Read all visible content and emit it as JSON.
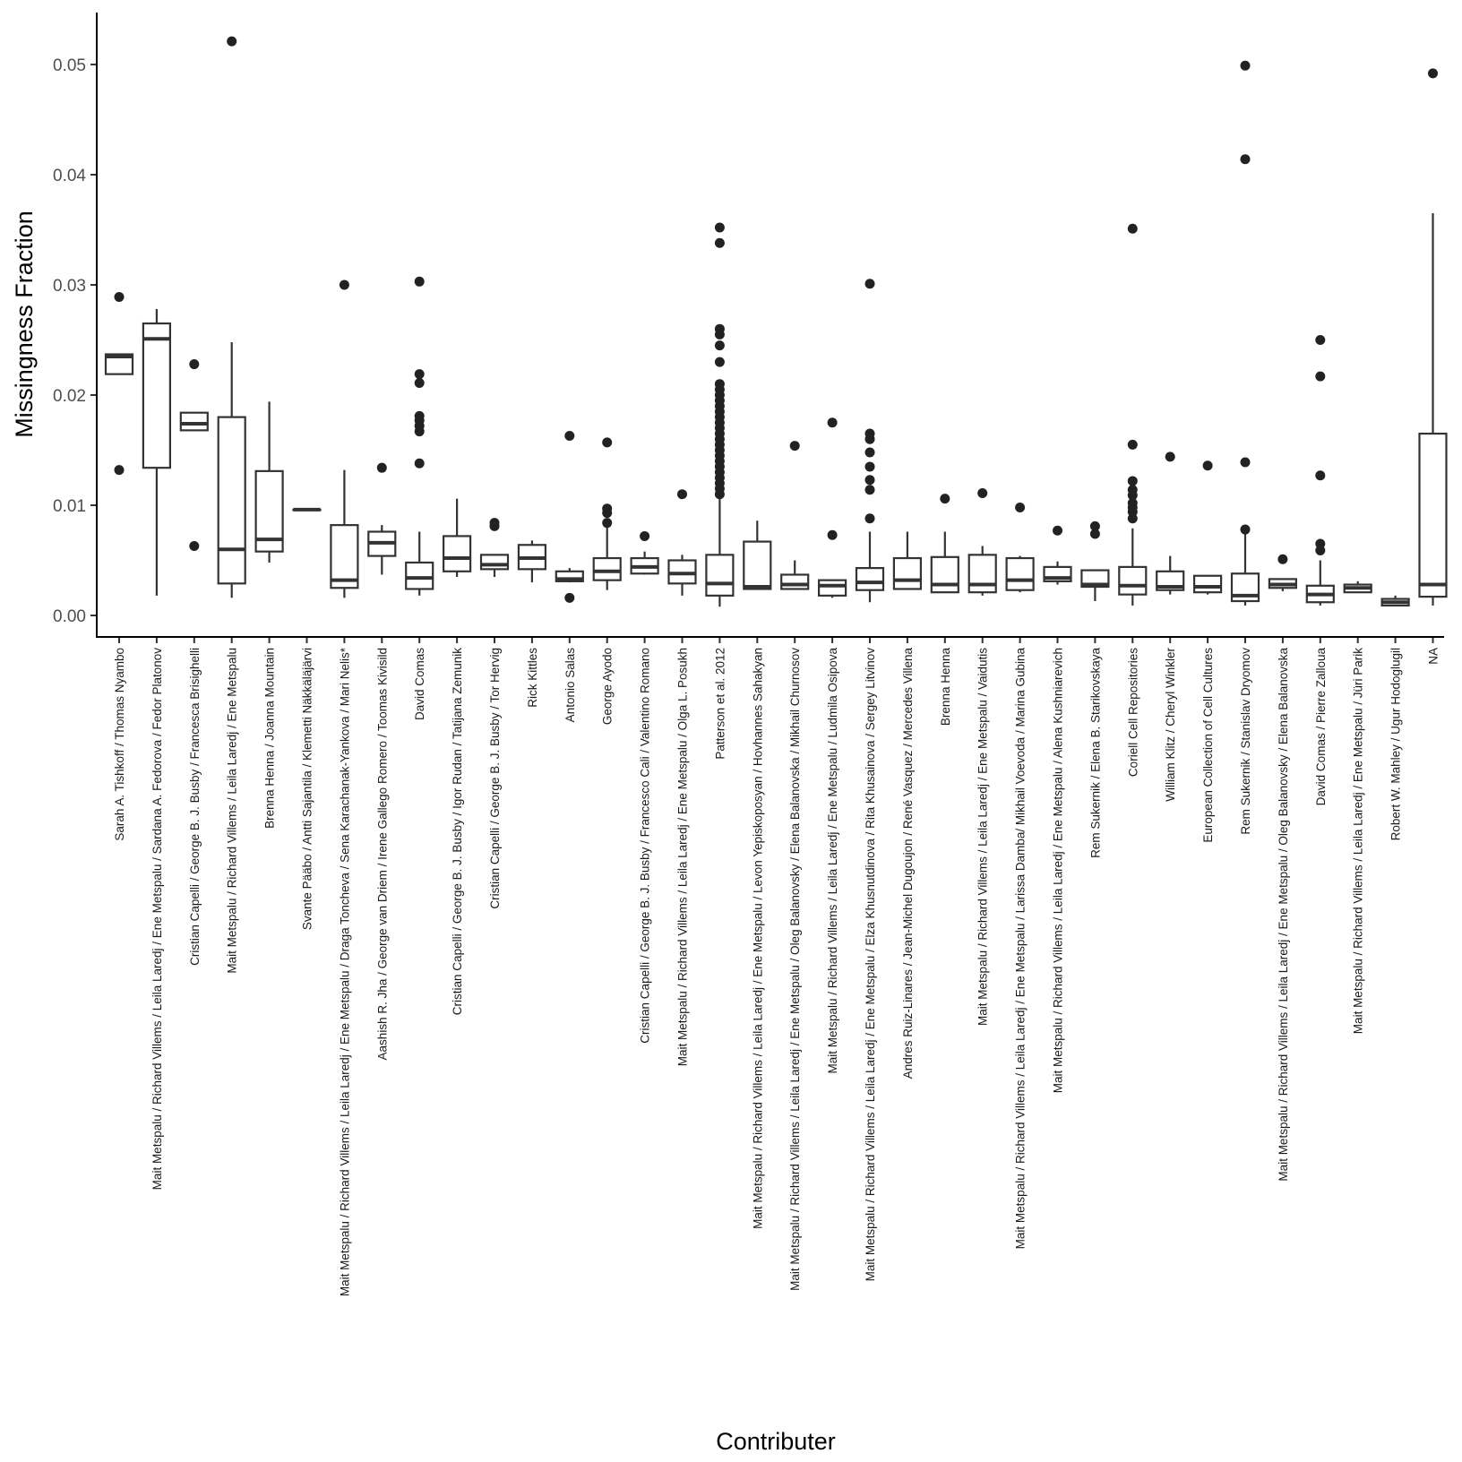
{
  "chart_data": {
    "type": "boxplot",
    "xlabel": "Contributer",
    "ylabel": "Missingness Fraction",
    "ylim": [
      -0.002,
      0.055
    ],
    "yticks": [
      "0.00",
      "0.01",
      "0.02",
      "0.03",
      "0.04",
      "0.05"
    ],
    "grid": false,
    "categories": [
      "Sarah A. Tishkoff / Thomas Nyambo",
      "Mait Metspalu / Richard Villems / Leila Laredj / Ene Metspalu / Sardana A. Fedorova / Fedor Platonov",
      "Cristian Capelli / George B. J. Busby / Francesca Brisighelli",
      "Mait Metspalu / Richard Villems / Leila Laredj / Ene Metspalu",
      "Brenna Henna / Joanna Mountain",
      "Svante Pääbo / Antti Sajantila / Klemetti Näkkäläjärvi",
      "Mait Metspalu / Richard Villems / Leila Laredj / Ene Metspalu / Draga Toncheva / Sena Karachanak-Yankova / Mari Nelis*",
      "Aashish R. Jha / George van Driem / Irene Gallego Romero / Toomas Kivisild",
      "David Comas",
      "Cristian Capelli / George B. J. Busby / Igor Rudan / Tatijana Zemunik",
      "Cristian Capelli / George B. J. Busby / Tor Hervig",
      "Rick Kittles",
      "Antonio Salas",
      "George Ayodo",
      "Cristian Capelli / George B. J. Busby / Francesco Cali / Valentino Romano",
      "Mait Metspalu / Richard Villems / Leila Laredj / Ene Metspalu / Olga L. Posukh",
      "Patterson et al. 2012",
      "Mait Metspalu / Richard Villems / Leila Laredj / Ene Metspalu / Levon Yepiskoposyan / Hovhannes Sahakyan",
      "Mait Metspalu / Richard Villems / Leila Laredj / Ene Metspalu / Oleg Balanovsky / Elena Balanovska / Mikhail Churnosov",
      "Mait Metspalu / Richard Villems / Leila Laredj / Ene Metspalu / Ludmila Osipova",
      "Mait Metspalu / Richard Villems / Leila Laredj / Ene Metspalu / Elza Khusnutdinova / Rita Khusainova / Sergey Litvinov",
      "Andres Ruiz-Linares / Jean-Michel Dugoujon / René Vasquez / Mercedes Villena",
      "Brenna Henna",
      "Mait Metspalu / Richard Villems / Leila Laredj / Ene Metspalu / Vaidutis",
      "Mait Metspalu / Richard Villems / Leila Laredj / Ene Metspalu / Larissa Damba/ Mikhail Voevoda / Marina Gubina",
      "Mait Metspalu / Richard Villems / Leila Laredj / Ene Metspalu / Alena Kushniarevich",
      "Rem Sukernik / Elena B. Starikovskaya",
      "Coriell Cell Repositories",
      "William Klitz / Cheryl Winkler",
      "European Collection of Cell Cultures",
      "Rem Sukernik / Stanislav Dryomov",
      "Mait Metspalu / Richard Villems / Leila Laredj / Ene Metspalu / Oleg Balanovsky / Elena Balanovska",
      "David Comas / Pierre Zalloua",
      "Mait Metspalu / Richard Villems / Leila Laredj / Ene Metspalu / Jüri Parik",
      "Robert W. Mahley / Ugur Hodoglugil",
      "NA"
    ],
    "boxes": [
      {
        "lower": 0.0219,
        "q1": 0.0219,
        "median": 0.0235,
        "q3": 0.0237,
        "upper": 0.0237,
        "outliers": [
          0.0289,
          0.0132
        ]
      },
      {
        "lower": 0.0018,
        "q1": 0.0134,
        "median": 0.0251,
        "q3": 0.0265,
        "upper": 0.0278,
        "outliers": []
      },
      {
        "lower": 0.0168,
        "q1": 0.0168,
        "median": 0.0174,
        "q3": 0.0184,
        "upper": 0.0184,
        "outliers": [
          0.0228,
          0.0063
        ]
      },
      {
        "lower": 0.0016,
        "q1": 0.0029,
        "median": 0.006,
        "q3": 0.018,
        "upper": 0.0248,
        "outliers": [
          0.0521
        ]
      },
      {
        "lower": 0.0048,
        "q1": 0.0058,
        "median": 0.0069,
        "q3": 0.0131,
        "upper": 0.0194,
        "outliers": []
      },
      {
        "lower": 0.0096,
        "q1": 0.0096,
        "median": 0.0096,
        "q3": 0.0096,
        "upper": 0.0096,
        "outliers": []
      },
      {
        "lower": 0.0016,
        "q1": 0.0025,
        "median": 0.0032,
        "q3": 0.0082,
        "upper": 0.0132,
        "outliers": [
          0.03
        ]
      },
      {
        "lower": 0.0037,
        "q1": 0.0054,
        "median": 0.0066,
        "q3": 0.0076,
        "upper": 0.0082,
        "outliers": [
          0.0134
        ]
      },
      {
        "lower": 0.0018,
        "q1": 0.0024,
        "median": 0.0034,
        "q3": 0.0048,
        "upper": 0.0076,
        "outliers": [
          0.0303,
          0.0219,
          0.0211,
          0.0181,
          0.0177,
          0.0172,
          0.0167,
          0.0138
        ]
      },
      {
        "lower": 0.0035,
        "q1": 0.004,
        "median": 0.0052,
        "q3": 0.0072,
        "upper": 0.0106,
        "outliers": []
      },
      {
        "lower": 0.0035,
        "q1": 0.0042,
        "median": 0.0046,
        "q3": 0.0055,
        "upper": 0.0055,
        "outliers": [
          0.0084,
          0.0081
        ]
      },
      {
        "lower": 0.003,
        "q1": 0.0042,
        "median": 0.0052,
        "q3": 0.0064,
        "upper": 0.0068,
        "outliers": []
      },
      {
        "lower": 0.003,
        "q1": 0.0031,
        "median": 0.0033,
        "q3": 0.004,
        "upper": 0.0043,
        "outliers": [
          0.0163,
          0.0016
        ]
      },
      {
        "lower": 0.0023,
        "q1": 0.0032,
        "median": 0.004,
        "q3": 0.0052,
        "upper": 0.0082,
        "outliers": [
          0.0157,
          0.0097,
          0.0093,
          0.0084
        ]
      },
      {
        "lower": 0.0037,
        "q1": 0.0038,
        "median": 0.0044,
        "q3": 0.0052,
        "upper": 0.0058,
        "outliers": [
          0.0072
        ]
      },
      {
        "lower": 0.0018,
        "q1": 0.0029,
        "median": 0.0038,
        "q3": 0.005,
        "upper": 0.0055,
        "outliers": [
          0.011
        ]
      },
      {
        "lower": 0.0008,
        "q1": 0.0018,
        "median": 0.0029,
        "q3": 0.0055,
        "upper": 0.0108,
        "outliers": [
          0.0352,
          0.0338,
          0.026,
          0.0255,
          0.0245,
          0.023,
          0.021,
          0.0205,
          0.02,
          0.0195,
          0.019,
          0.0185,
          0.018,
          0.0175,
          0.017,
          0.0165,
          0.016,
          0.0155,
          0.015,
          0.0145,
          0.014,
          0.0135,
          0.013,
          0.0125,
          0.012,
          0.0115,
          0.011
        ]
      },
      {
        "lower": 0.0024,
        "q1": 0.0024,
        "median": 0.0026,
        "q3": 0.0067,
        "upper": 0.0086,
        "outliers": []
      },
      {
        "lower": 0.0024,
        "q1": 0.0024,
        "median": 0.0028,
        "q3": 0.0037,
        "upper": 0.005,
        "outliers": [
          0.0154
        ]
      },
      {
        "lower": 0.0016,
        "q1": 0.0018,
        "median": 0.0027,
        "q3": 0.0032,
        "upper": 0.0032,
        "outliers": [
          0.0175,
          0.0073
        ]
      },
      {
        "lower": 0.0012,
        "q1": 0.0023,
        "median": 0.003,
        "q3": 0.0043,
        "upper": 0.0076,
        "outliers": [
          0.0301,
          0.0165,
          0.016,
          0.0148,
          0.0135,
          0.0123,
          0.0114,
          0.0088
        ]
      },
      {
        "lower": 0.0024,
        "q1": 0.0024,
        "median": 0.0032,
        "q3": 0.0052,
        "upper": 0.0076,
        "outliers": []
      },
      {
        "lower": 0.0021,
        "q1": 0.0021,
        "median": 0.0028,
        "q3": 0.0053,
        "upper": 0.0076,
        "outliers": [
          0.0106
        ]
      },
      {
        "lower": 0.0018,
        "q1": 0.0021,
        "median": 0.0028,
        "q3": 0.0055,
        "upper": 0.0063,
        "outliers": [
          0.0111
        ]
      },
      {
        "lower": 0.0021,
        "q1": 0.0023,
        "median": 0.0032,
        "q3": 0.0052,
        "upper": 0.0054,
        "outliers": [
          0.0098
        ]
      },
      {
        "lower": 0.0028,
        "q1": 0.0031,
        "median": 0.0034,
        "q3": 0.0044,
        "upper": 0.0049,
        "outliers": [
          0.0077
        ]
      },
      {
        "lower": 0.0013,
        "q1": 0.0026,
        "median": 0.0028,
        "q3": 0.0041,
        "upper": 0.0041,
        "outliers": [
          0.0081,
          0.0074
        ]
      },
      {
        "lower": 0.0009,
        "q1": 0.0019,
        "median": 0.0027,
        "q3": 0.0044,
        "upper": 0.0079,
        "outliers": [
          0.0351,
          0.0155,
          0.0122,
          0.0114,
          0.0109,
          0.0102,
          0.0098,
          0.0094,
          0.0088
        ]
      },
      {
        "lower": 0.0019,
        "q1": 0.0023,
        "median": 0.0026,
        "q3": 0.004,
        "upper": 0.0054,
        "outliers": [
          0.0144
        ]
      },
      {
        "lower": 0.0019,
        "q1": 0.0021,
        "median": 0.0026,
        "q3": 0.0036,
        "upper": 0.0036,
        "outliers": [
          0.0136
        ]
      },
      {
        "lower": 0.0009,
        "q1": 0.0013,
        "median": 0.0018,
        "q3": 0.0038,
        "upper": 0.0074,
        "outliers": [
          0.0499,
          0.0414,
          0.0139,
          0.0078
        ]
      },
      {
        "lower": 0.0022,
        "q1": 0.0025,
        "median": 0.0028,
        "q3": 0.0033,
        "upper": 0.0033,
        "outliers": [
          0.0051
        ]
      },
      {
        "lower": 0.0009,
        "q1": 0.0012,
        "median": 0.0019,
        "q3": 0.0027,
        "upper": 0.005,
        "outliers": [
          0.025,
          0.0217,
          0.0127,
          0.0065,
          0.0059
        ]
      },
      {
        "lower": 0.0021,
        "q1": 0.0021,
        "median": 0.0025,
        "q3": 0.0028,
        "upper": 0.0031,
        "outliers": []
      },
      {
        "lower": 0.0009,
        "q1": 0.0009,
        "median": 0.0012,
        "q3": 0.0015,
        "upper": 0.0018,
        "outliers": []
      },
      {
        "lower": 0.0009,
        "q1": 0.0017,
        "median": 0.0028,
        "q3": 0.0165,
        "upper": 0.0365,
        "outliers": [
          0.0492
        ]
      }
    ]
  }
}
